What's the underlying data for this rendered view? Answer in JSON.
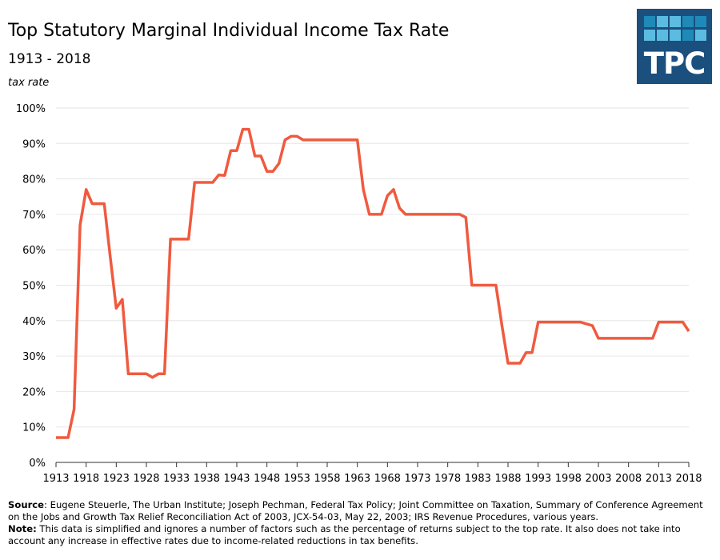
{
  "logo": {
    "text": "TPC",
    "colors": [
      "#1b4f7e",
      "#1f8ab8",
      "#5bbbe0"
    ]
  },
  "chart_data": {
    "type": "line",
    "title": "Top Statutory Marginal Individual Income Tax Rate",
    "subtitle": "1913 - 2018",
    "ylabel": "tax rate",
    "xlabel": "",
    "ylim": [
      0,
      100
    ],
    "xlim": [
      1913,
      2018
    ],
    "grid": true,
    "line_color": "#f05a3f",
    "y_ticks": [
      "0%",
      "10%",
      "20%",
      "30%",
      "40%",
      "50%",
      "60%",
      "70%",
      "80%",
      "90%",
      "100%"
    ],
    "x_ticks": [
      "1913",
      "1918",
      "1923",
      "1928",
      "1933",
      "1938",
      "1943",
      "1948",
      "1953",
      "1958",
      "1963",
      "1968",
      "1973",
      "1978",
      "1983",
      "1988",
      "1993",
      "1998",
      "2003",
      "2008",
      "2013",
      "2018"
    ],
    "x_start": 1913,
    "values": [
      7,
      7,
      7,
      15,
      67,
      77,
      73,
      73,
      73,
      58,
      43.5,
      46,
      25,
      25,
      25,
      25,
      24,
      25,
      25,
      63,
      63,
      63,
      63,
      79,
      79,
      79,
      79,
      81.1,
      81,
      88,
      88,
      94,
      94,
      86.45,
      86.45,
      82.13,
      82.13,
      84.36,
      91,
      92,
      92,
      91,
      91,
      91,
      91,
      91,
      91,
      91,
      91,
      91,
      91,
      77,
      70,
      70,
      70,
      75.25,
      77,
      71.75,
      70,
      70,
      70,
      70,
      70,
      70,
      70,
      70,
      70,
      70,
      69.13,
      50,
      50,
      50,
      50,
      50,
      38.5,
      28,
      28,
      28,
      31,
      31,
      39.6,
      39.6,
      39.6,
      39.6,
      39.6,
      39.6,
      39.6,
      39.6,
      39.1,
      38.6,
      35,
      35,
      35,
      35,
      35,
      35,
      35,
      35,
      35,
      35,
      39.6,
      39.6,
      39.6,
      39.6,
      39.6,
      37
    ]
  },
  "footer": {
    "source_label": "Source",
    "source_text": ": Eugene Steuerle, The Urban Institute; Joseph Pechman, Federal Tax Policy; Joint Committee on Taxation, Summary of Conference Agreement on the Jobs and Growth Tax Relief Reconciliation Act of 2003, JCX-54-03, May 22, 2003; IRS Revenue Procedures, various years.",
    "note_label": "Note:",
    "note_text": " This data is simplified and ignores a number of factors such as the percentage of returns subject to the top rate. It also does not take into account any increase in effective rates due to income-related reductions in tax benefits."
  }
}
